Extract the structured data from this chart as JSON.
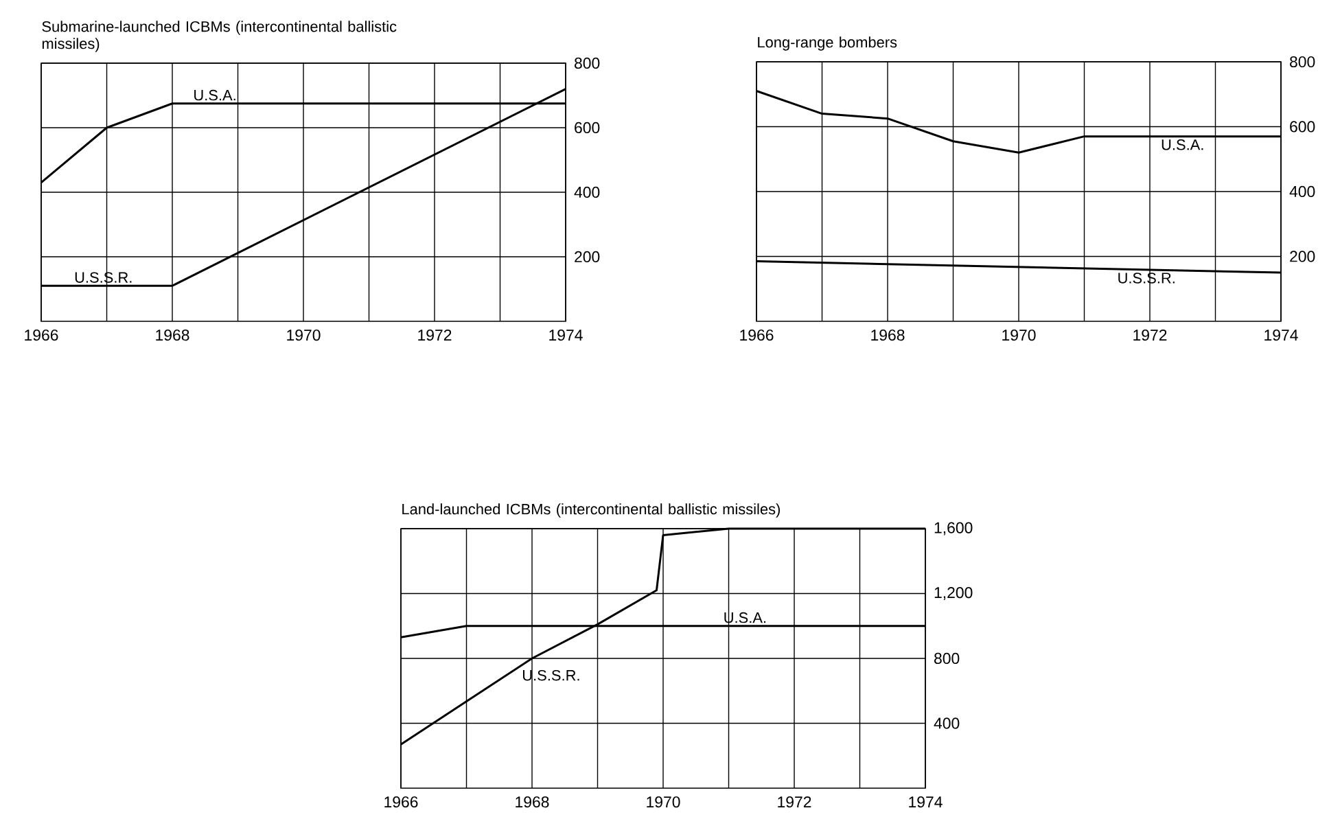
{
  "chart_data": [
    {
      "type": "line",
      "title": "Submarine-launched ICBMs (intercontinental ballistic missiles)",
      "xlim": [
        1966,
        1974
      ],
      "xticks": [
        1966,
        {
          "value": 1967,
          "label": null
        },
        1968,
        {
          "value": 1969,
          "label": null
        },
        1970,
        {
          "value": 1971,
          "label": null
        },
        1972,
        {
          "value": 1973,
          "label": null
        },
        1974
      ],
      "ylim": [
        0,
        800
      ],
      "yticks": [
        200,
        400,
        600,
        800
      ],
      "grid": true,
      "series": [
        {
          "name": "U.S.A.",
          "color": "#000000",
          "x": [
            1966,
            1967,
            1968,
            1974
          ],
          "values": [
            430,
            600,
            675,
            675
          ]
        },
        {
          "name": "U.S.S.R.",
          "color": "#000000",
          "x": [
            1966,
            1968,
            1974
          ],
          "values": [
            110,
            110,
            720
          ]
        }
      ]
    },
    {
      "type": "line",
      "title": "Long-range bombers",
      "xlim": [
        1966,
        1974
      ],
      "xticks": [
        1966,
        {
          "value": 1967,
          "label": null
        },
        1968,
        {
          "value": 1969,
          "label": null
        },
        1970,
        {
          "value": 1971,
          "label": null
        },
        1972,
        {
          "value": 1973,
          "label": null
        },
        1974
      ],
      "ylim": [
        0,
        800
      ],
      "yticks": [
        200,
        400,
        600,
        800
      ],
      "grid": true,
      "series": [
        {
          "name": "U.S.A.",
          "color": "#000000",
          "x": [
            1966,
            1967,
            1968,
            1969,
            1970,
            1971,
            1974
          ],
          "values": [
            710,
            640,
            625,
            555,
            520,
            570,
            570
          ]
        },
        {
          "name": "U.S.S.R.",
          "color": "#000000",
          "x": [
            1966,
            1974
          ],
          "values": [
            185,
            150
          ]
        }
      ]
    },
    {
      "type": "line",
      "title": "Land-launched ICBMs  (intercontinental ballistic missiles)",
      "xlim": [
        1966,
        1974
      ],
      "xticks": [
        1966,
        {
          "value": 1967,
          "label": null
        },
        1968,
        {
          "value": 1969,
          "label": null
        },
        1970,
        {
          "value": 1971,
          "label": null
        },
        1972,
        {
          "value": 1973,
          "label": null
        },
        1974
      ],
      "ylim": [
        0,
        1600
      ],
      "yticks": [
        {
          "value": 400,
          "label": "400"
        },
        {
          "value": 800,
          "label": "800"
        },
        {
          "value": 1200,
          "label": "1,200"
        },
        {
          "value": 1600,
          "label": "1,600"
        }
      ],
      "grid": true,
      "series": [
        {
          "name": "U.S.A.",
          "color": "#000000",
          "x": [
            1966,
            1967,
            1974
          ],
          "values": [
            930,
            1000,
            1000
          ]
        },
        {
          "name": "U.S.S.R.",
          "color": "#000000",
          "x": [
            1966,
            1968,
            1969,
            1969.9,
            1970,
            1971,
            1974
          ],
          "values": [
            270,
            800,
            1010,
            1220,
            1560,
            1600,
            1600
          ]
        }
      ]
    }
  ]
}
